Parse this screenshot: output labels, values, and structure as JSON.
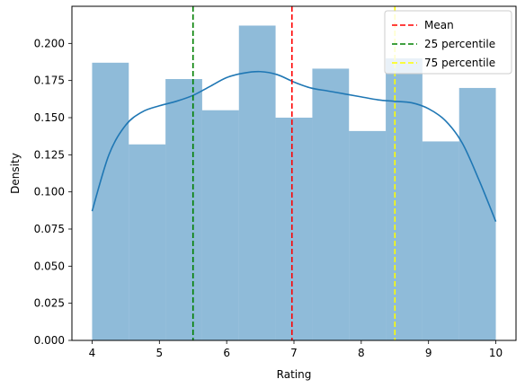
{
  "chart_data": {
    "type": "histogram",
    "xlabel": "Rating",
    "ylabel": "Density",
    "xlim": [
      3.7,
      10.3
    ],
    "ylim": [
      0,
      0.225
    ],
    "xticks": [
      4,
      5,
      6,
      7,
      8,
      9,
      10
    ],
    "yticks": [
      0.0,
      0.025,
      0.05,
      0.075,
      0.1,
      0.125,
      0.15,
      0.175,
      0.2
    ],
    "ytick_labels": [
      "0.000",
      "0.025",
      "0.050",
      "0.075",
      "0.100",
      "0.125",
      "0.150",
      "0.175",
      "0.200"
    ],
    "bins": {
      "edges": [
        4.0,
        4.545,
        5.091,
        5.636,
        6.182,
        6.727,
        7.273,
        7.818,
        8.364,
        8.909,
        9.455,
        10.0
      ],
      "densities": [
        0.187,
        0.132,
        0.176,
        0.155,
        0.212,
        0.15,
        0.183,
        0.141,
        0.19,
        0.134,
        0.17
      ],
      "color": "#1f77b4",
      "opacity": 0.5
    },
    "kde": {
      "color": "#1f77b4",
      "x": [
        4.0,
        4.25,
        4.5,
        4.75,
        5.0,
        5.25,
        5.5,
        5.75,
        6.0,
        6.25,
        6.5,
        6.75,
        7.0,
        7.25,
        7.5,
        7.75,
        8.0,
        8.25,
        8.5,
        8.75,
        9.0,
        9.25,
        9.5,
        9.75,
        10.0
      ],
      "y": [
        0.087,
        0.125,
        0.145,
        0.154,
        0.158,
        0.161,
        0.165,
        0.171,
        0.177,
        0.18,
        0.181,
        0.179,
        0.174,
        0.17,
        0.168,
        0.166,
        0.164,
        0.162,
        0.161,
        0.16,
        0.156,
        0.148,
        0.133,
        0.108,
        0.08
      ]
    },
    "lines": [
      {
        "name": "Mean",
        "x": 6.97,
        "color": "#ff0000"
      },
      {
        "name": "25 percentile",
        "x": 5.5,
        "color": "#008000"
      },
      {
        "name": "75 percentile",
        "x": 8.5,
        "color": "#ffff00"
      }
    ],
    "legend_position": "top-right",
    "grid": false
  }
}
